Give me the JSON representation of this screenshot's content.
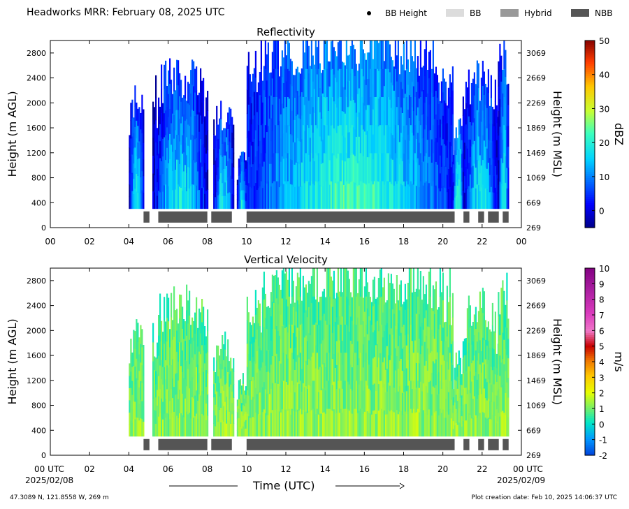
{
  "header": {
    "title": "Headworks MRR:  February 08, 2025 UTC",
    "legend": [
      {
        "label": "BB Height",
        "kind": "dot",
        "color": "#000000"
      },
      {
        "label": "BB",
        "kind": "patch",
        "color": "#dcdcdc"
      },
      {
        "label": "Hybrid",
        "kind": "patch",
        "color": "#999999"
      },
      {
        "label": "NBB",
        "kind": "patch",
        "color": "#555555"
      }
    ]
  },
  "x_axis": {
    "ticks": [
      "00",
      "02",
      "04",
      "06",
      "08",
      "10",
      "12",
      "14",
      "16",
      "18",
      "20",
      "22",
      "00"
    ],
    "bottom_ticks": [
      "00 UTC",
      "02",
      "04",
      "06",
      "08",
      "10",
      "12",
      "14",
      "16",
      "18",
      "20",
      "22",
      "00 UTC"
    ],
    "start_date": "2025/02/08",
    "end_date": "2025/02/09",
    "label": "Time (UTC)"
  },
  "footer": {
    "location": "47.3089 N, 121.8558 W, 269 m",
    "created": "Plot creation date: Feb 10, 2025 14:06:37 UTC"
  },
  "chart_data": [
    {
      "type": "heatmap",
      "title": "Reflectivity",
      "ylabel": "Height (m AGL)",
      "ylabel_right": "Height (m MSL)",
      "yticks": [
        "0",
        "400",
        "800",
        "1200",
        "1600",
        "2000",
        "2400",
        "2800"
      ],
      "yticks_right": [
        "269",
        "669",
        "1069",
        "1469",
        "1869",
        "2269",
        "2669",
        "3069"
      ],
      "xlim": [
        0,
        24
      ],
      "ylim": [
        0,
        3000
      ],
      "colorbar": {
        "label": "dBZ",
        "ticks": [
          "0",
          "10",
          "20",
          "30",
          "40",
          "50"
        ],
        "range": [
          -5,
          50
        ]
      },
      "precip_segments": [
        [
          4.0,
          4.75,
          2050,
          1780
        ],
        [
          5.2,
          8.0,
          2400,
          2200
        ],
        [
          8.3,
          9.3,
          1800,
          1650
        ],
        [
          9.5,
          10.0,
          1200,
          1000
        ],
        [
          10.0,
          20.5,
          2900,
          2700
        ],
        [
          20.5,
          21.0,
          1600,
          1400
        ],
        [
          21.0,
          22.8,
          2350,
          2150
        ],
        [
          22.8,
          23.35,
          2700,
          2500
        ]
      ],
      "rain_type_bars": [
        {
          "start": 4.75,
          "end": 5.05,
          "type": "NBB"
        },
        {
          "start": 5.5,
          "end": 8.0,
          "type": "NBB"
        },
        {
          "start": 8.2,
          "end": 9.25,
          "type": "NBB"
        },
        {
          "start": 10.0,
          "end": 20.6,
          "type": "NBB"
        },
        {
          "start": 21.05,
          "end": 21.35,
          "type": "NBB"
        },
        {
          "start": 21.8,
          "end": 22.1,
          "type": "NBB"
        },
        {
          "start": 22.3,
          "end": 22.85,
          "type": "NBB"
        },
        {
          "start": 23.05,
          "end": 23.35,
          "type": "NBB"
        }
      ]
    },
    {
      "type": "heatmap",
      "title": "Vertical Velocity",
      "ylabel": "Height (m AGL)",
      "ylabel_right": "Height (m MSL)",
      "yticks": [
        "0",
        "400",
        "800",
        "1200",
        "1600",
        "2000",
        "2400",
        "2800"
      ],
      "yticks_right": [
        "269",
        "669",
        "1069",
        "1469",
        "1869",
        "2269",
        "2669",
        "3069"
      ],
      "xlim": [
        0,
        24
      ],
      "ylim": [
        0,
        3000
      ],
      "colorbar": {
        "label": "m/s",
        "ticks": [
          "-2",
          "-1",
          "0",
          "1",
          "2",
          "3",
          "4",
          "5",
          "6",
          "7",
          "8",
          "9",
          "10"
        ],
        "range": [
          -2,
          10
        ]
      },
      "precip_segments": [
        [
          4.0,
          4.75,
          2050,
          1780
        ],
        [
          5.2,
          8.0,
          2400,
          2200
        ],
        [
          8.3,
          9.3,
          1800,
          1650
        ],
        [
          9.5,
          10.0,
          1200,
          1000
        ],
        [
          10.0,
          20.5,
          2900,
          2700
        ],
        [
          20.5,
          21.0,
          1600,
          1400
        ],
        [
          21.0,
          22.8,
          2350,
          2150
        ],
        [
          22.8,
          23.35,
          2700,
          2500
        ]
      ],
      "rain_type_bars": [
        {
          "start": 4.75,
          "end": 5.05,
          "type": "NBB"
        },
        {
          "start": 5.5,
          "end": 8.0,
          "type": "NBB"
        },
        {
          "start": 8.2,
          "end": 9.25,
          "type": "NBB"
        },
        {
          "start": 10.0,
          "end": 20.6,
          "type": "NBB"
        },
        {
          "start": 21.05,
          "end": 21.35,
          "type": "NBB"
        },
        {
          "start": 21.8,
          "end": 22.1,
          "type": "NBB"
        },
        {
          "start": 22.3,
          "end": 22.85,
          "type": "NBB"
        },
        {
          "start": 23.05,
          "end": 23.35,
          "type": "NBB"
        }
      ]
    }
  ]
}
